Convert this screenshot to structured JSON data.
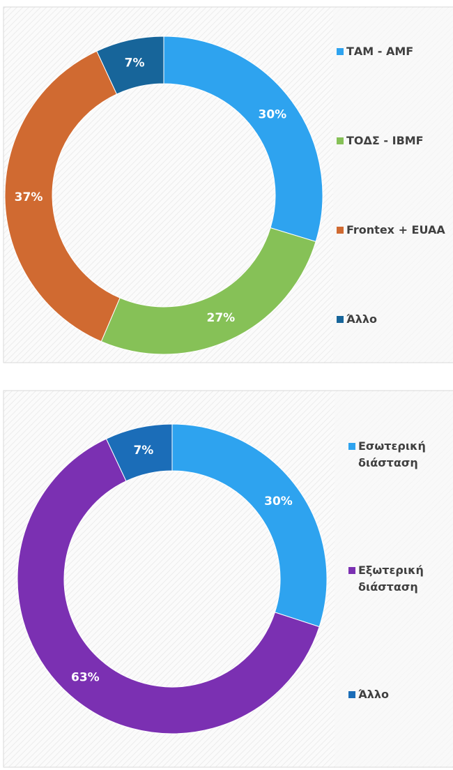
{
  "chart_data": [
    {
      "type": "donut",
      "categories": [
        "ΤΑΜ - AMF",
        "ΤΟΔΣ - IBMF",
        "Frontex + EUAA",
        "Άλλο"
      ],
      "values": [
        30,
        27,
        37,
        7
      ],
      "value_labels": [
        "30%",
        "27%",
        "37%",
        "7%"
      ],
      "colors": [
        "#2ea3ef",
        "#86c157",
        "#d06a31",
        "#17659a"
      ],
      "legend": "right"
    },
    {
      "type": "donut",
      "categories": [
        "Εσωτερική διάσταση",
        "Εξωτερική διάσταση",
        "Άλλο"
      ],
      "values": [
        30,
        63,
        7
      ],
      "value_labels": [
        "30%",
        "63%",
        "7%"
      ],
      "colors": [
        "#2ea3ef",
        "#7b30b2",
        "#1b6db8"
      ],
      "legend": "right"
    }
  ]
}
